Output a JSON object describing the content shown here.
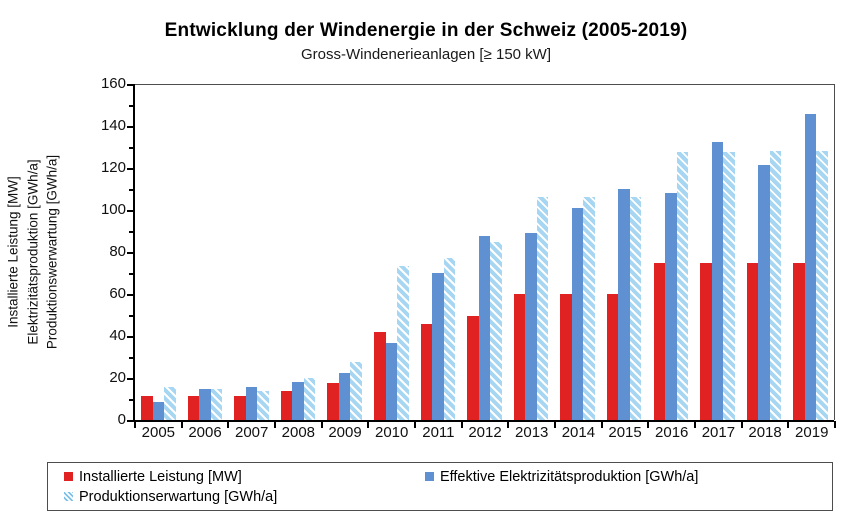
{
  "title": "Entwicklung der Windenergie in der Schweiz (2005-2019)",
  "subtitle": "Gross-Windenerieanlagen [≥ 150 kW]",
  "colors": {
    "installed_red": "#e02322",
    "effective_blue": "#5e90d2",
    "expected_hatch_blue": "#a7d6f2",
    "axis_black": "#000000",
    "border_gray": "#4d4d4d"
  },
  "chart_data": {
    "type": "bar",
    "title": "Entwicklung der Windenergie in der Schweiz (2005-2019)",
    "subtitle": "Gross-Windenerieanlagen [≥ 150 kW]",
    "categories": [
      "2005",
      "2006",
      "2007",
      "2008",
      "2009",
      "2010",
      "2011",
      "2012",
      "2013",
      "2014",
      "2015",
      "2016",
      "2017",
      "2018",
      "2019"
    ],
    "series": [
      {
        "name": "Installierte Leistung [MW]",
        "style": "solid-red",
        "values": [
          11.5,
          11.5,
          11.5,
          14,
          17.5,
          42,
          45.5,
          49.5,
          60,
          60,
          60,
          75,
          75,
          75,
          75
        ]
      },
      {
        "name": "Effektive Elektrizitätsproduktion [GWh/a]",
        "style": "solid-blue",
        "values": [
          8.5,
          15,
          15.5,
          18,
          22.5,
          36.5,
          70,
          87.5,
          89,
          101,
          110,
          108,
          132.5,
          121.5,
          145.5
        ]
      },
      {
        "name": "Produktionserwartung [GWh/a]",
        "style": "hatched-lightblue",
        "values": [
          15.5,
          15,
          14,
          20,
          27.5,
          73.5,
          77,
          85,
          106,
          106,
          106,
          127.5,
          127.5,
          128,
          128
        ]
      }
    ],
    "ylabel_lines": [
      "Installierte Leistung [MW]",
      "Elektrizitätsproduktion [GWh/a]",
      "Produktionswerwartung [GWh/a]"
    ],
    "xlabel": "",
    "ylim": [
      0,
      160
    ],
    "ytick_step": 20,
    "yminor_step": 10,
    "grid": false,
    "legend_position": "bottom-box"
  }
}
